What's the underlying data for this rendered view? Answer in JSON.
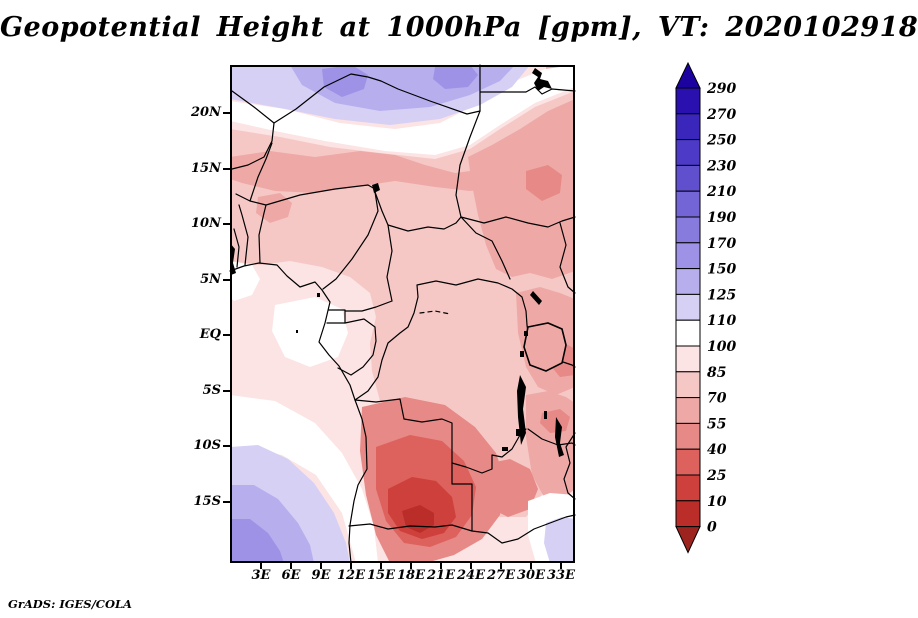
{
  "page": {
    "title": "Geopotential Height at 1000hPa [gpm], VT: 2020102918",
    "credit": "GrADS: IGES/COLA",
    "background": "#FFFFFF"
  },
  "chart_data": {
    "type": "heatmap",
    "subtype": "filled-contour-map",
    "title": "Geopotential Height at 1000hPa [gpm], VT: 2020102918",
    "variable": "Geopotential Height",
    "level": "1000hPa",
    "units": "gpm",
    "valid_time": "2020102918",
    "region": "Africa approx 0E-35E, 24N-20S",
    "x_axis": {
      "ticks": [
        "3E",
        "6E",
        "9E",
        "12E",
        "15E",
        "18E",
        "21E",
        "24E",
        "27E",
        "30E",
        "33E"
      ]
    },
    "y_axis": {
      "ticks": [
        "20N",
        "15N",
        "10N",
        "5N",
        "EQ",
        "5S",
        "10S",
        "15S"
      ]
    },
    "grid": false,
    "colorbar": {
      "orientation": "vertical",
      "position": "right",
      "labels_top_to_bottom": [
        "290",
        "270",
        "250",
        "230",
        "210",
        "190",
        "170",
        "150",
        "125",
        "110",
        "100",
        "85",
        "70",
        "55",
        "40",
        "25",
        "10",
        "0"
      ],
      "colors_top_to_bottom": [
        "#1C03A0",
        "#2B10B0",
        "#3B26BC",
        "#4D3AC6",
        "#6050CE",
        "#7365D6",
        "#877BDE",
        "#9D92E6",
        "#B7AEEE",
        "#D6D0F5",
        "#FFFFFF",
        "#FBE4E3",
        "#F5C8C6",
        "#EEA9A6",
        "#E78986",
        "#DD615D",
        "#CE403B",
        "#BA2D28",
        "#9D231F"
      ],
      "arrow_above_color": "#1C03A0",
      "arrow_below_color": "#9D231F"
    },
    "field_features": [
      {
        "area": "Sahara / Libya / Egypt north of ~20N",
        "value_gpm": "110-170"
      },
      {
        "area": "white transition band ~18-21N curving NE across Sudan to Egypt",
        "value_gpm": "100-110"
      },
      {
        "area": "Sahel band 8-14N and Sudan / South Sudan",
        "value_gpm": "55-85"
      },
      {
        "area": "Gabon / Congo coast near the equator",
        "value_gpm": "85-110"
      },
      {
        "area": "Uganda / Lake Victoria / Tanzania",
        "value_gpm": "55-85"
      },
      {
        "area": "Angola interior core ~13-17S",
        "value_gpm": "10-40"
      },
      {
        "area": "South Atlantic bottom-left corner",
        "value_gpm": "110-170"
      },
      {
        "area": "bottom-right corner (Mozambique)",
        "value_gpm": "100-125"
      }
    ]
  },
  "map": {
    "frame_color": "#000000",
    "border_color": "#000000",
    "lake_color": "#000000"
  }
}
